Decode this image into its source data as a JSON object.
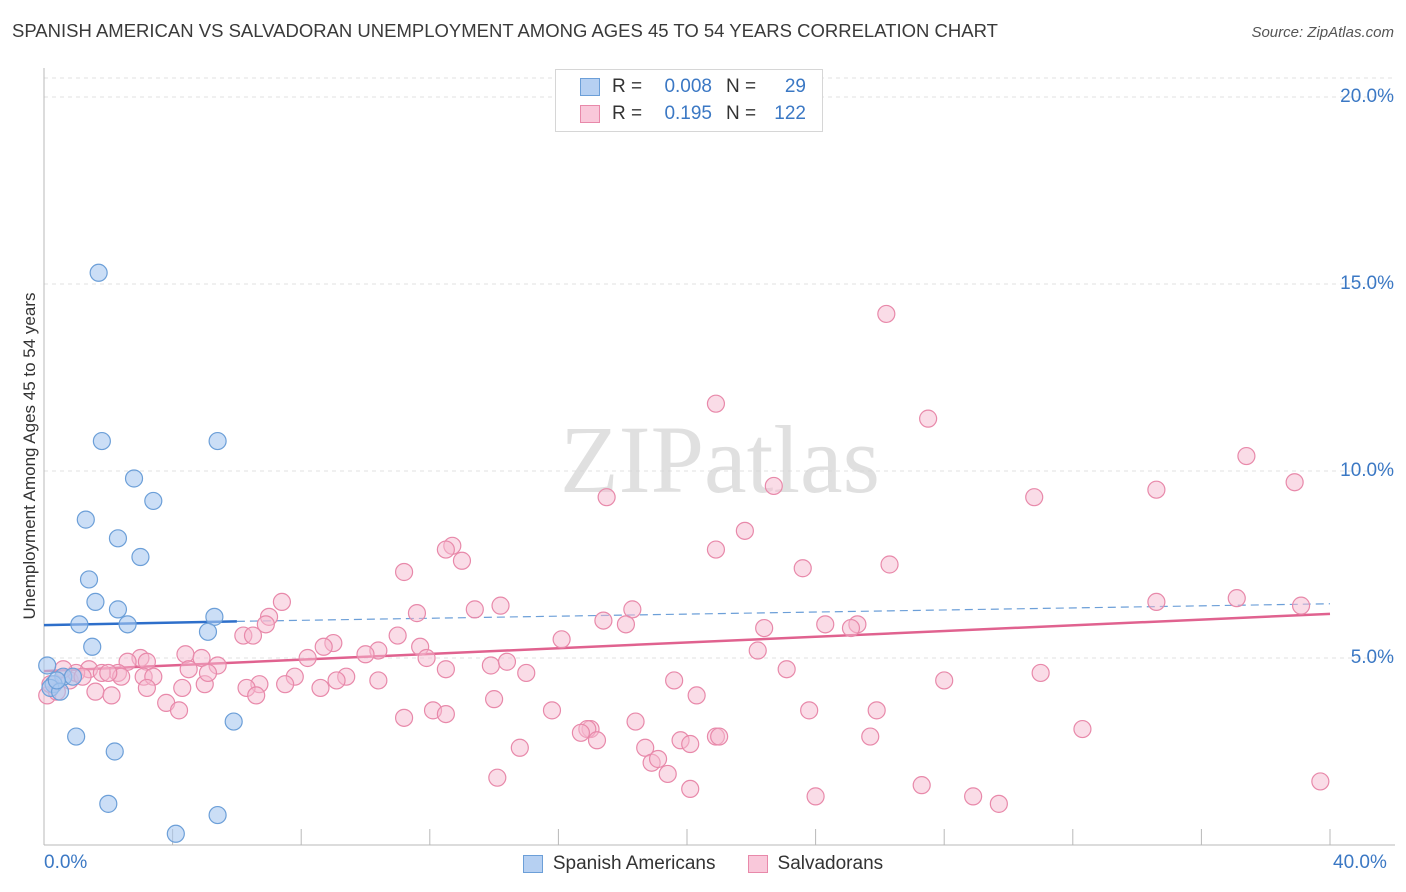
{
  "title": "SPANISH AMERICAN VS SALVADORAN UNEMPLOYMENT AMONG AGES 45 TO 54 YEARS CORRELATION CHART",
  "source": "Source: ZipAtlas.com",
  "watermark": "ZIPatlas",
  "legend": {
    "rows": [
      {
        "r_label": "R =",
        "r_value": "0.008",
        "n_label": "N =",
        "n_value": "29"
      },
      {
        "r_label": "R =",
        "r_value": "0.195",
        "n_label": "N =",
        "n_value": "122"
      }
    ]
  },
  "bottom_legend": [
    "Spanish Americans",
    "Salvadorans"
  ],
  "colors": {
    "blue_fill": "#a9c8f0",
    "blue_stroke": "#6c9fd8",
    "blue_line": "#2e6fca",
    "pink_fill": "#f6b9cf",
    "pink_stroke": "#e889aa",
    "pink_line": "#e0628f",
    "tick_text": "#3b78c4",
    "grid": "#e1e1e1"
  },
  "chart_data": {
    "type": "scatter",
    "title": "SPANISH AMERICAN VS SALVADORAN UNEMPLOYMENT AMONG AGES 45 TO 54 YEARS CORRELATION CHART",
    "xlabel": "",
    "ylabel": "Unemployment Among Ages 45 to 54 years",
    "xlim": [
      0,
      40
    ],
    "ylim": [
      0,
      20.5
    ],
    "x_tick_labels": [
      "0.0%",
      "40.0%"
    ],
    "y_ticks": [
      5,
      10,
      15,
      20
    ],
    "y_tick_labels": [
      "5.0%",
      "10.0%",
      "15.0%",
      "20.0%"
    ],
    "series": [
      {
        "name": "Spanish Americans",
        "r": 0.008,
        "n": 29,
        "trend": {
          "x0": 0,
          "y0": 5.88,
          "x1": 6.0,
          "y1": 5.98,
          "x_dash_end": 40,
          "y_dash_end": 6.45
        },
        "points": [
          [
            1.7,
            15.3
          ],
          [
            1.8,
            10.8
          ],
          [
            5.4,
            10.8
          ],
          [
            2.8,
            9.8
          ],
          [
            3.4,
            9.2
          ],
          [
            1.3,
            8.7
          ],
          [
            2.3,
            8.2
          ],
          [
            3.0,
            7.7
          ],
          [
            1.4,
            7.1
          ],
          [
            1.6,
            6.5
          ],
          [
            2.3,
            6.3
          ],
          [
            5.3,
            6.1
          ],
          [
            1.1,
            5.9
          ],
          [
            2.6,
            5.9
          ],
          [
            5.1,
            5.7
          ],
          [
            1.5,
            5.3
          ],
          [
            0.1,
            4.8
          ],
          [
            0.6,
            4.5
          ],
          [
            0.9,
            4.5
          ],
          [
            0.3,
            4.3
          ],
          [
            0.2,
            4.2
          ],
          [
            0.5,
            4.1
          ],
          [
            5.9,
            3.3
          ],
          [
            1.0,
            2.9
          ],
          [
            2.2,
            2.5
          ],
          [
            2.0,
            1.1
          ],
          [
            5.4,
            0.8
          ],
          [
            4.1,
            0.3
          ],
          [
            0.4,
            4.4
          ]
        ]
      },
      {
        "name": "Salvadorans",
        "r": 0.195,
        "n": 122,
        "trend": {
          "x0": 0,
          "y0": 4.65,
          "x1": 40,
          "y1": 6.18
        },
        "points": [
          [
            26.2,
            14.2
          ],
          [
            20.9,
            11.8
          ],
          [
            27.5,
            11.4
          ],
          [
            37.4,
            10.4
          ],
          [
            38.9,
            9.7
          ],
          [
            22.7,
            9.6
          ],
          [
            34.6,
            9.5
          ],
          [
            30.8,
            9.3
          ],
          [
            17.5,
            9.3
          ],
          [
            21.8,
            8.4
          ],
          [
            12.7,
            8.0
          ],
          [
            12.5,
            7.9
          ],
          [
            20.9,
            7.9
          ],
          [
            13.0,
            7.6
          ],
          [
            26.3,
            7.5
          ],
          [
            23.6,
            7.4
          ],
          [
            11.2,
            7.3
          ],
          [
            37.1,
            6.6
          ],
          [
            7.4,
            6.5
          ],
          [
            34.6,
            6.5
          ],
          [
            39.1,
            6.4
          ],
          [
            14.2,
            6.4
          ],
          [
            18.3,
            6.3
          ],
          [
            13.4,
            6.3
          ],
          [
            11.6,
            6.2
          ],
          [
            7.0,
            6.1
          ],
          [
            17.4,
            6.0
          ],
          [
            24.3,
            5.9
          ],
          [
            6.9,
            5.9
          ],
          [
            18.1,
            5.9
          ],
          [
            25.3,
            5.9
          ],
          [
            25.1,
            5.8
          ],
          [
            22.4,
            5.8
          ],
          [
            6.2,
            5.6
          ],
          [
            6.5,
            5.6
          ],
          [
            11.0,
            5.6
          ],
          [
            16.1,
            5.5
          ],
          [
            9.0,
            5.4
          ],
          [
            8.7,
            5.3
          ],
          [
            11.7,
            5.3
          ],
          [
            10.4,
            5.2
          ],
          [
            4.4,
            5.1
          ],
          [
            3.0,
            5.0
          ],
          [
            3.2,
            4.9
          ],
          [
            4.9,
            5.0
          ],
          [
            13.9,
            4.8
          ],
          [
            11.9,
            5.0
          ],
          [
            22.2,
            5.2
          ],
          [
            8.2,
            5.0
          ],
          [
            10.0,
            5.1
          ],
          [
            14.4,
            4.9
          ],
          [
            2.6,
            4.9
          ],
          [
            5.4,
            4.8
          ],
          [
            12.5,
            4.7
          ],
          [
            15.0,
            4.6
          ],
          [
            23.1,
            4.7
          ],
          [
            31.0,
            4.6
          ],
          [
            2.3,
            4.6
          ],
          [
            3.1,
            4.5
          ],
          [
            4.5,
            4.7
          ],
          [
            1.4,
            4.7
          ],
          [
            1.8,
            4.6
          ],
          [
            2.4,
            4.5
          ],
          [
            3.4,
            4.5
          ],
          [
            9.4,
            4.5
          ],
          [
            7.8,
            4.5
          ],
          [
            10.4,
            4.4
          ],
          [
            28.0,
            4.4
          ],
          [
            5.0,
            4.3
          ],
          [
            7.5,
            4.3
          ],
          [
            9.1,
            4.4
          ],
          [
            6.7,
            4.3
          ],
          [
            3.2,
            4.2
          ],
          [
            1.6,
            4.1
          ],
          [
            0.1,
            4.0
          ],
          [
            4.3,
            4.2
          ],
          [
            6.3,
            4.2
          ],
          [
            8.6,
            4.2
          ],
          [
            0.4,
            4.1
          ],
          [
            2.1,
            4.0
          ],
          [
            6.6,
            4.0
          ],
          [
            20.3,
            4.0
          ],
          [
            0.2,
            4.3
          ],
          [
            0.8,
            4.4
          ],
          [
            3.8,
            3.8
          ],
          [
            4.2,
            3.6
          ],
          [
            12.1,
            3.6
          ],
          [
            14.0,
            3.9
          ],
          [
            15.8,
            3.6
          ],
          [
            19.6,
            4.4
          ],
          [
            23.8,
            3.6
          ],
          [
            25.9,
            3.6
          ],
          [
            17.0,
            3.1
          ],
          [
            18.4,
            3.3
          ],
          [
            16.9,
            3.1
          ],
          [
            19.8,
            2.8
          ],
          [
            20.9,
            2.9
          ],
          [
            21.0,
            2.9
          ],
          [
            25.7,
            2.9
          ],
          [
            32.3,
            3.1
          ],
          [
            14.8,
            2.6
          ],
          [
            17.2,
            2.8
          ],
          [
            18.7,
            2.6
          ],
          [
            20.1,
            2.7
          ],
          [
            18.9,
            2.2
          ],
          [
            19.1,
            2.3
          ],
          [
            19.4,
            1.9
          ],
          [
            14.1,
            1.8
          ],
          [
            20.1,
            1.5
          ],
          [
            24.0,
            1.3
          ],
          [
            27.3,
            1.6
          ],
          [
            28.9,
            1.3
          ],
          [
            29.7,
            1.1
          ],
          [
            39.7,
            1.7
          ],
          [
            16.7,
            3.0
          ],
          [
            1.0,
            4.6
          ],
          [
            2.0,
            4.6
          ],
          [
            1.2,
            4.5
          ],
          [
            0.6,
            4.7
          ],
          [
            5.1,
            4.6
          ],
          [
            12.5,
            3.5
          ],
          [
            11.2,
            3.4
          ]
        ]
      }
    ]
  }
}
